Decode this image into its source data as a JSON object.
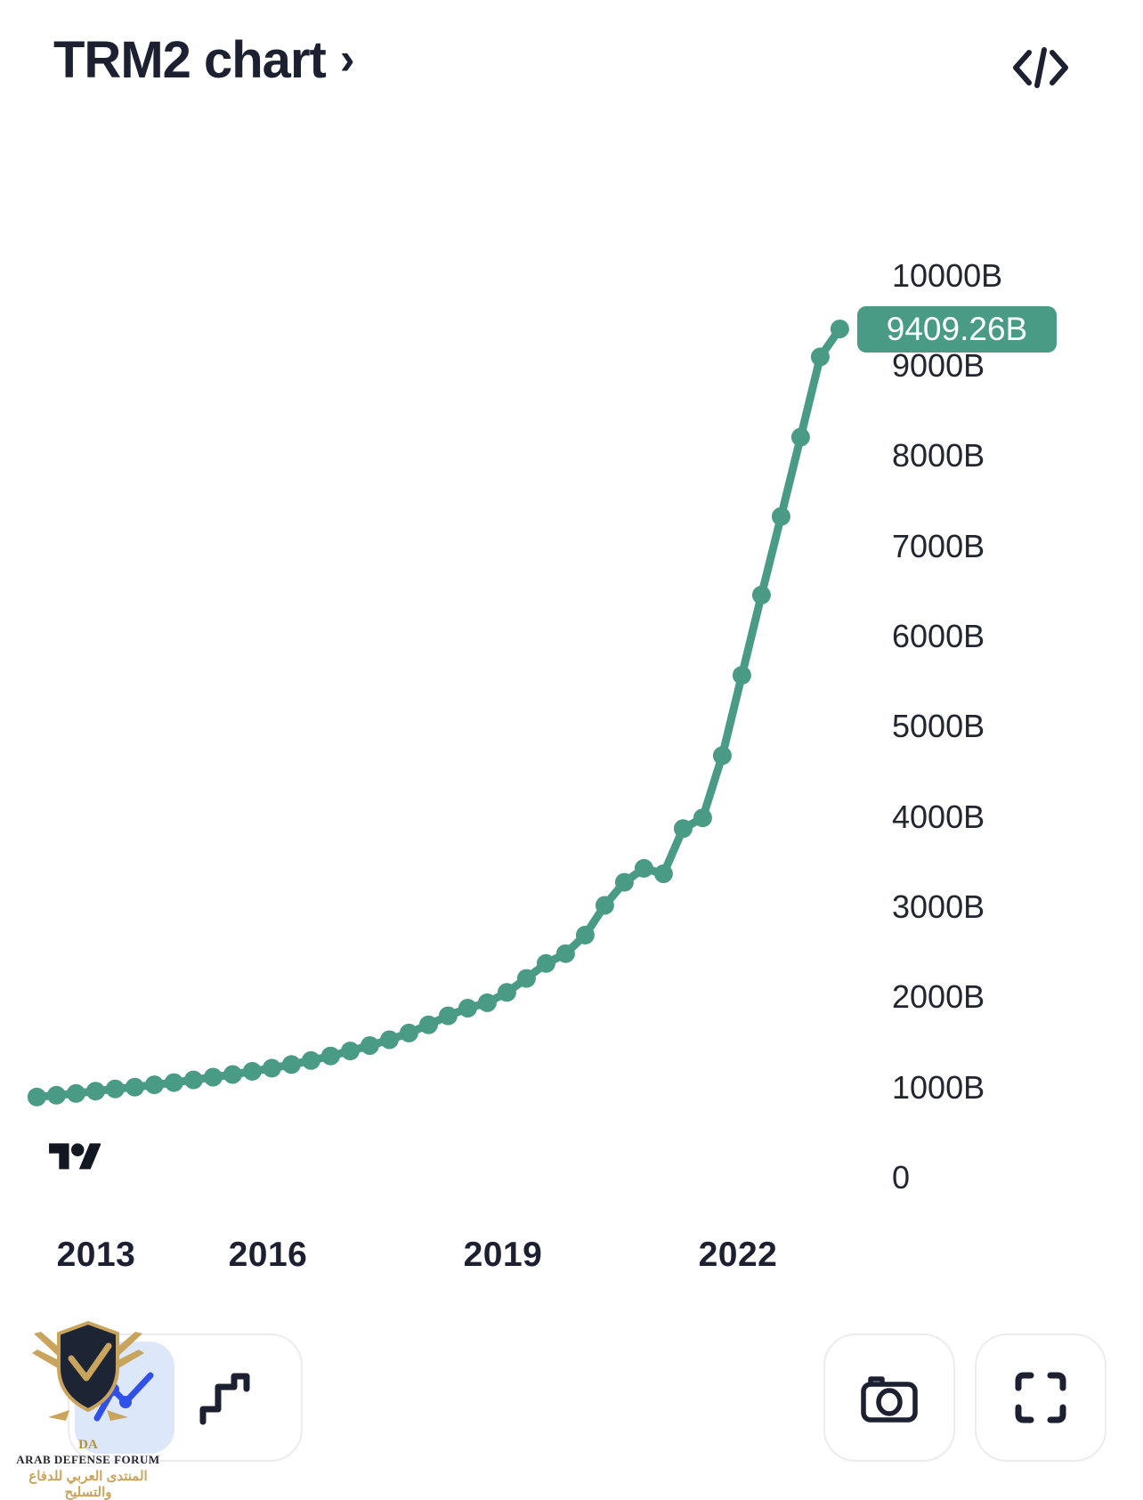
{
  "header": {
    "title": "TRM2 chart",
    "chevron": "›"
  },
  "icons": {
    "top_right": "code-icon",
    "chart_type_selected": "line-chart-icon",
    "chart_type_alt": "step-chart-icon",
    "snapshot": "camera-icon",
    "expand": "fullscreen-icon",
    "brand": "tradingview-logo"
  },
  "colors": {
    "line": "#4a9b85",
    "badge_bg": "#4a9b85",
    "badge_text": "#ffffff",
    "dark": "#1c2030",
    "chip_bg": "#dce8fa",
    "chip_icon": "#3050e8",
    "button_border": "#ececf0"
  },
  "chart_data": {
    "type": "line",
    "title": "TRM2 chart",
    "unit": "B",
    "grid": false,
    "legend": "none",
    "ylim": [
      0,
      10000
    ],
    "xlim": [
      2013,
      2023.3
    ],
    "marker": "circle",
    "current_value_label": "9409.26B",
    "current_value": 9409.26,
    "y_tick_labels": [
      "10000B",
      "9000B",
      "8000B",
      "7000B",
      "6000B",
      "5000B",
      "4000B",
      "3000B",
      "2000B",
      "1000B",
      "0"
    ],
    "y_tick_values": [
      10000,
      9000,
      8000,
      7000,
      6000,
      5000,
      4000,
      3000,
      2000,
      1000,
      0
    ],
    "x_tick_labels": [
      "2013",
      "2016",
      "2019",
      "2022"
    ],
    "x_tick_values": [
      2013,
      2016,
      2019,
      2022
    ],
    "series": [
      {
        "name": "TRM2",
        "points": [
          [
            2013.05,
            895
          ],
          [
            2013.3,
            915
          ],
          [
            2013.55,
            935
          ],
          [
            2013.8,
            960
          ],
          [
            2014.05,
            985
          ],
          [
            2014.3,
            1005
          ],
          [
            2014.55,
            1030
          ],
          [
            2014.8,
            1055
          ],
          [
            2015.05,
            1085
          ],
          [
            2015.3,
            1115
          ],
          [
            2015.55,
            1145
          ],
          [
            2015.8,
            1180
          ],
          [
            2016.05,
            1215
          ],
          [
            2016.3,
            1255
          ],
          [
            2016.55,
            1300
          ],
          [
            2016.8,
            1350
          ],
          [
            2017.05,
            1405
          ],
          [
            2017.3,
            1465
          ],
          [
            2017.55,
            1530
          ],
          [
            2017.8,
            1605
          ],
          [
            2018.05,
            1695
          ],
          [
            2018.3,
            1795
          ],
          [
            2018.55,
            1880
          ],
          [
            2018.8,
            1940
          ],
          [
            2019.05,
            2055
          ],
          [
            2019.3,
            2210
          ],
          [
            2019.55,
            2375
          ],
          [
            2019.8,
            2485
          ],
          [
            2020.05,
            2690
          ],
          [
            2020.3,
            3020
          ],
          [
            2020.55,
            3275
          ],
          [
            2020.8,
            3430
          ],
          [
            2021.05,
            3370
          ],
          [
            2021.3,
            3870
          ],
          [
            2021.55,
            3990
          ],
          [
            2021.8,
            4680
          ],
          [
            2022.05,
            5570
          ],
          [
            2022.3,
            6460
          ],
          [
            2022.55,
            7330
          ],
          [
            2022.8,
            8210
          ],
          [
            2023.05,
            9100
          ],
          [
            2023.3,
            9409.26
          ]
        ]
      }
    ]
  },
  "watermark": {
    "line1": "DA",
    "line2": "ARAB DEFENSE FORUM",
    "line3": "المنتدى العربي للدفاع والتسليح"
  }
}
